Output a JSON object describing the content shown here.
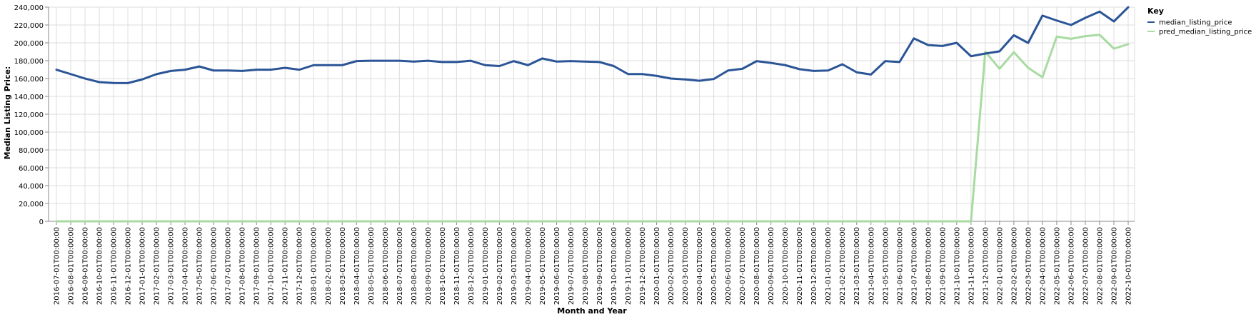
{
  "chart_data": {
    "type": "line",
    "xlabel": "Month and Year",
    "ylabel": "Median Listing Price:",
    "ylim": [
      0,
      240000
    ],
    "y_ticks": [
      0,
      20000,
      40000,
      60000,
      80000,
      100000,
      120000,
      140000,
      160000,
      180000,
      200000,
      220000,
      240000
    ],
    "y_tick_labels": [
      "0",
      "20,000",
      "40,000",
      "60,000",
      "80,000",
      "100,000",
      "120,000",
      "140,000",
      "160,000",
      "180,000",
      "200,000",
      "220,000",
      "240,000"
    ],
    "grid": true,
    "legend_title": "Key",
    "legend_position": "top-right",
    "categories": [
      "2016-07-01T00:00:00",
      "2016-08-01T00:00:00",
      "2016-09-01T00:00:00",
      "2016-10-01T00:00:00",
      "2016-11-01T00:00:00",
      "2016-12-01T00:00:00",
      "2017-01-01T00:00:00",
      "2017-02-01T00:00:00",
      "2017-03-01T00:00:00",
      "2017-04-01T00:00:00",
      "2017-05-01T00:00:00",
      "2017-06-01T00:00:00",
      "2017-07-01T00:00:00",
      "2017-08-01T00:00:00",
      "2017-09-01T00:00:00",
      "2017-10-01T00:00:00",
      "2017-11-01T00:00:00",
      "2017-12-01T00:00:00",
      "2018-01-01T00:00:00",
      "2018-02-01T00:00:00",
      "2018-03-01T00:00:00",
      "2018-04-01T00:00:00",
      "2018-05-01T00:00:00",
      "2018-06-01T00:00:00",
      "2018-07-01T00:00:00",
      "2018-08-01T00:00:00",
      "2018-09-01T00:00:00",
      "2018-10-01T00:00:00",
      "2018-11-01T00:00:00",
      "2018-12-01T00:00:00",
      "2019-01-01T00:00:00",
      "2019-02-01T00:00:00",
      "2019-03-01T00:00:00",
      "2019-04-01T00:00:00",
      "2019-05-01T00:00:00",
      "2019-06-01T00:00:00",
      "2019-07-01T00:00:00",
      "2019-08-01T00:00:00",
      "2019-09-01T00:00:00",
      "2019-10-01T00:00:00",
      "2019-11-01T00:00:00",
      "2019-12-01T00:00:00",
      "2020-01-01T00:00:00",
      "2020-02-01T00:00:00",
      "2020-03-01T00:00:00",
      "2020-04-01T00:00:00",
      "2020-05-01T00:00:00",
      "2020-06-01T00:00:00",
      "2020-07-01T00:00:00",
      "2020-08-01T00:00:00",
      "2020-09-01T00:00:00",
      "2020-10-01T00:00:00",
      "2020-11-01T00:00:00",
      "2020-12-01T00:00:00",
      "2021-01-01T00:00:00",
      "2021-02-01T00:00:00",
      "2021-03-01T00:00:00",
      "2021-04-01T00:00:00",
      "2021-05-01T00:00:00",
      "2021-06-01T00:00:00",
      "2021-07-01T00:00:00",
      "2021-08-01T00:00:00",
      "2021-09-01T00:00:00",
      "2021-10-01T00:00:00",
      "2021-11-01T00:00:00",
      "2021-12-01T00:00:00",
      "2022-01-01T00:00:00",
      "2022-02-01T00:00:00",
      "2022-03-01T00:00:00",
      "2022-04-01T00:00:00",
      "2022-05-01T00:00:00",
      "2022-06-01T00:00:00",
      "2022-07-01T00:00:00",
      "2022-08-01T00:00:00",
      "2022-09-01T00:00:00",
      "2022-10-01T00:00:00"
    ],
    "series": [
      {
        "name": "median_listing_price",
        "color": "#2b5597",
        "values": [
          169900,
          165000,
          160000,
          156000,
          155000,
          154900,
          159000,
          164900,
          168500,
          169900,
          173500,
          169000,
          169000,
          168500,
          169900,
          169900,
          172000,
          169900,
          175000,
          175000,
          175000,
          179500,
          179900,
          179900,
          179900,
          179000,
          179900,
          178500,
          178500,
          179900,
          175000,
          174000,
          179500,
          175000,
          182500,
          179000,
          179500,
          179000,
          178500,
          174000,
          165000,
          165000,
          163000,
          160000,
          159000,
          157500,
          159500,
          169000,
          170900,
          179500,
          177500,
          175000,
          170500,
          168500,
          169000,
          176000,
          167000,
          164500,
          179500,
          178500,
          205000,
          197500,
          196500,
          200000,
          185000,
          188000,
          190500,
          208500,
          199900,
          230500,
          225000,
          220000,
          228000,
          235000,
          224000,
          239900
        ]
      },
      {
        "name": "pred_median_listing_price",
        "color": "#a8dba1",
        "values": [
          0,
          0,
          0,
          0,
          0,
          0,
          0,
          0,
          0,
          0,
          0,
          0,
          0,
          0,
          0,
          0,
          0,
          0,
          0,
          0,
          0,
          0,
          0,
          0,
          0,
          0,
          0,
          0,
          0,
          0,
          0,
          0,
          0,
          0,
          0,
          0,
          0,
          0,
          0,
          0,
          0,
          0,
          0,
          0,
          0,
          0,
          0,
          0,
          0,
          0,
          0,
          0,
          0,
          0,
          0,
          0,
          0,
          0,
          0,
          0,
          0,
          0,
          0,
          0,
          0,
          190000,
          171000,
          189500,
          172000,
          161500,
          207000,
          204500,
          207500,
          209000,
          193500,
          198500
        ]
      }
    ]
  }
}
